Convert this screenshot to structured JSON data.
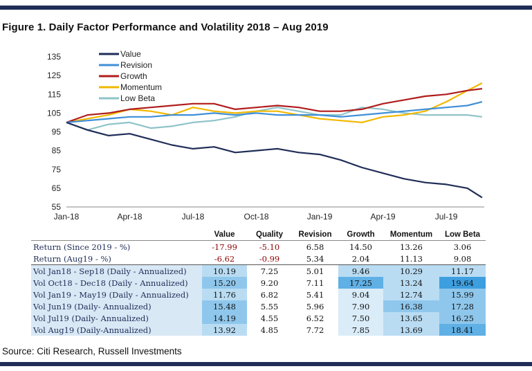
{
  "title": "Figure 1. Daily Factor Performance and Volatility 2018 – Aug 2019",
  "source": "Source: Citi Research, Russell Investments",
  "colors": {
    "bar": "#1f2d57",
    "Value": "#1f2d57",
    "Revision": "#3f8fd8",
    "Growth": "#b01c1c",
    "Momentum": "#f2b800",
    "Low Beta": "#8fc3c8"
  },
  "chart_data": {
    "type": "line",
    "y_ticks": [
      "135",
      "125",
      "115",
      "105",
      "95",
      "85",
      "75",
      "65",
      "55"
    ],
    "y_range": [
      55,
      135
    ],
    "x_ticks": [
      "Jan-18",
      "Apr-18",
      "Jul-18",
      "Oct-18",
      "Jan-19",
      "Apr-19",
      "Jul-19"
    ],
    "x_range": [
      0,
      19.8
    ],
    "legend": [
      "Value",
      "Revision",
      "Growth",
      "Momentum",
      "Low Beta"
    ],
    "series": [
      {
        "name": "Value",
        "x": [
          0,
          1,
          2,
          3,
          4,
          5,
          6,
          7,
          8,
          9,
          10,
          11,
          12,
          13,
          14,
          15,
          16,
          17,
          18,
          19,
          19.7
        ],
        "values": [
          100,
          96,
          93,
          94,
          91,
          88,
          86,
          87,
          84,
          85,
          86,
          84,
          83,
          80,
          76,
          73,
          70,
          68,
          67,
          65,
          60
        ]
      },
      {
        "name": "Revision",
        "x": [
          0,
          1,
          2,
          3,
          4,
          5,
          6,
          7,
          8,
          9,
          10,
          11,
          12,
          13,
          14,
          15,
          16,
          17,
          18,
          19,
          19.7
        ],
        "values": [
          100,
          101,
          102,
          103,
          103,
          104,
          104,
          105,
          104,
          105,
          104,
          104,
          104,
          103,
          104,
          105,
          106,
          107,
          108,
          109,
          111
        ]
      },
      {
        "name": "Growth",
        "x": [
          0,
          1,
          2,
          3,
          4,
          5,
          6,
          7,
          8,
          9,
          10,
          11,
          12,
          13,
          14,
          15,
          16,
          17,
          18,
          19,
          19.7
        ],
        "values": [
          100,
          104,
          105,
          107,
          108,
          109,
          110,
          110,
          107,
          108,
          109,
          108,
          106,
          106,
          107,
          110,
          112,
          114,
          115,
          117,
          118
        ]
      },
      {
        "name": "Momentum",
        "x": [
          0,
          1,
          2,
          3,
          4,
          5,
          6,
          7,
          8,
          9,
          10,
          11,
          12,
          13,
          14,
          15,
          16,
          17,
          18,
          19,
          19.7
        ],
        "values": [
          100,
          102,
          104,
          107,
          106,
          104,
          108,
          106,
          105,
          106,
          106,
          104,
          102,
          101,
          100,
          103,
          104,
          106,
          111,
          117,
          121
        ]
      },
      {
        "name": "Low Beta",
        "x": [
          0,
          1,
          2,
          3,
          4,
          5,
          6,
          7,
          8,
          9,
          10,
          11,
          12,
          13,
          14,
          15,
          16,
          17,
          18,
          19,
          19.7
        ],
        "values": [
          100,
          96,
          99,
          100,
          97,
          98,
          100,
          101,
          103,
          106,
          108,
          106,
          104,
          104,
          108,
          107,
          105,
          104,
          104,
          104,
          103
        ]
      }
    ]
  },
  "table": {
    "headers": [
      "Value",
      "Quality",
      "Revision",
      "Growth",
      "Momentum",
      "Low Beta"
    ],
    "rows": [
      {
        "label": "Return (Since 2019 - %)",
        "values": [
          "-17.99",
          "-5.10",
          "6.58",
          "14.50",
          "13.26",
          "3.06"
        ]
      },
      {
        "label": "Return (Aug19 - %)",
        "values": [
          "-6.62",
          "-0.99",
          "5.34",
          "2.04",
          "11.13",
          "9.08"
        ]
      },
      {
        "label": "Vol Jan18 - Sep18 (Daily - Annualized)",
        "values": [
          "10.19",
          "7.25",
          "5.01",
          "9.46",
          "10.29",
          "11.17"
        ]
      },
      {
        "label": "Vol Oct18 - Dec18 (Daily - Annualized)",
        "values": [
          "15.20",
          "9.20",
          "7.11",
          "17.25",
          "13.24",
          "19.64"
        ]
      },
      {
        "label": "Vol Jan19 - May19 (Daily - Annualized)",
        "values": [
          "11.76",
          "6.82",
          "5.41",
          "9.04",
          "12.74",
          "15.99"
        ]
      },
      {
        "label": "Vol Jun19 (Daily- Annualized)",
        "values": [
          "15.48",
          "5.55",
          "5.96",
          "7.90",
          "16.38",
          "17.28"
        ]
      },
      {
        "label": "Vol Jul19 (Daily- Annualized)",
        "values": [
          "14.19",
          "4.55",
          "6.52",
          "7.50",
          "13.65",
          "16.25"
        ]
      },
      {
        "label": "Vol Aug19 (Daily-Annualized)",
        "values": [
          "13.92",
          "4.85",
          "7.72",
          "7.85",
          "13.69",
          "18.41"
        ]
      }
    ],
    "heat_colors": [
      [
        "#b9dcf3",
        "#ffffff",
        "#ffffff",
        "#b9dcf3",
        "#b9dcf3",
        "#b9dcf3"
      ],
      [
        "#8fc7ec",
        "#ffffff",
        "#ffffff",
        "#5fb0e5",
        "#b9dcf3",
        "#3d9fe0"
      ],
      [
        "#b9dcf3",
        "#ffffff",
        "#ffffff",
        "#d9ecf8",
        "#b9dcf3",
        "#8fc7ec"
      ],
      [
        "#8fc7ec",
        "#ffffff",
        "#ffffff",
        "#d9ecf8",
        "#8fc7ec",
        "#8fc7ec"
      ],
      [
        "#8fc7ec",
        "#ffffff",
        "#ffffff",
        "#d9ecf8",
        "#b9dcf3",
        "#8fc7ec"
      ],
      [
        "#b9dcf3",
        "#ffffff",
        "#ffffff",
        "#d9ecf8",
        "#b9dcf3",
        "#5fb0e5"
      ]
    ]
  }
}
